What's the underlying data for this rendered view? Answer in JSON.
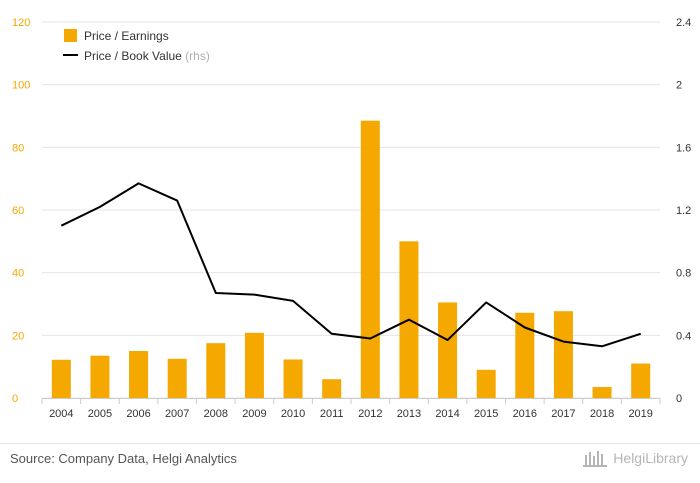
{
  "chart_data": {
    "type": "bar+line",
    "categories": [
      "2004",
      "2005",
      "2006",
      "2007",
      "2008",
      "2009",
      "2010",
      "2011",
      "2012",
      "2013",
      "2014",
      "2015",
      "2016",
      "2017",
      "2018",
      "2019"
    ],
    "series": [
      {
        "name": "Price / Earnings",
        "type": "bar",
        "axis": "left",
        "color": "#F5A800",
        "values": [
          12.2,
          13.5,
          15.0,
          12.5,
          17.5,
          20.8,
          12.3,
          6.0,
          88.5,
          50.0,
          30.5,
          9.0,
          27.2,
          27.7,
          3.5,
          11.0
        ]
      },
      {
        "name": "Price / Book Value",
        "name_suffix": "(rhs)",
        "type": "line",
        "axis": "right",
        "color": "#000000",
        "values": [
          1.1,
          1.22,
          1.37,
          1.26,
          0.67,
          0.66,
          0.62,
          0.41,
          0.38,
          0.5,
          0.37,
          0.61,
          0.45,
          0.36,
          0.33,
          0.41
        ]
      }
    ],
    "yleft": {
      "min": 0,
      "max": 120,
      "ticks": [
        "0",
        "20",
        "40",
        "60",
        "80",
        "100",
        "120"
      ],
      "color": "#F5A800"
    },
    "yright": {
      "min": 0,
      "max": 2.4,
      "ticks": [
        "0",
        "0.4",
        "0.8",
        "1.2",
        "1.6",
        "2",
        "2.4"
      ],
      "color": "#333333"
    },
    "legend_position": "top-left",
    "grid": "horizontal"
  },
  "footer": {
    "source": "Source: Company Data, Helgi Analytics",
    "logo": "HelgiLibrary"
  }
}
